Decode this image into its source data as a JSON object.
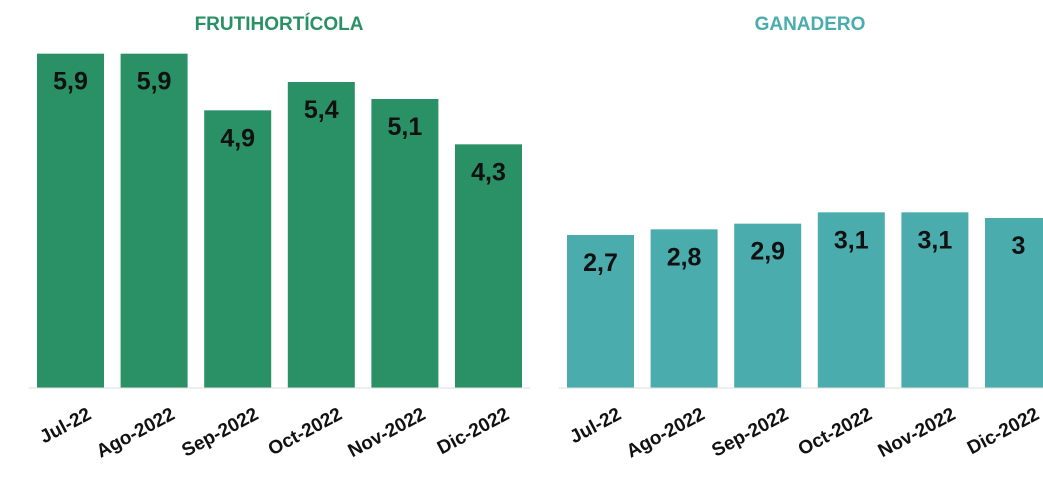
{
  "chart_data": [
    {
      "type": "bar",
      "title": "FRUTIHORTÍCOLA",
      "categories": [
        "Jul-22",
        "Ago-2022",
        "Sep-2022",
        "Oct-2022",
        "Nov-2022",
        "Dic-2022"
      ],
      "values": [
        5.9,
        5.9,
        4.9,
        5.4,
        5.1,
        4.3
      ],
      "value_labels": [
        "5,9",
        "5,9",
        "4,9",
        "5,4",
        "5,1",
        "4,3"
      ],
      "color": "#2a9065",
      "ylim": [
        0,
        6
      ]
    },
    {
      "type": "bar",
      "title": "GANADERO",
      "categories": [
        "Jul-22",
        "Ago-2022",
        "Sep-2022",
        "Oct-2022",
        "Nov-2022",
        "Dic-2022"
      ],
      "values": [
        2.7,
        2.8,
        2.9,
        3.1,
        3.1,
        3
      ],
      "value_labels": [
        "2,7",
        "2,8",
        "2,9",
        "3,1",
        "3,1",
        "3"
      ],
      "color": "#4aacac",
      "ylim": [
        0,
        6
      ]
    }
  ]
}
